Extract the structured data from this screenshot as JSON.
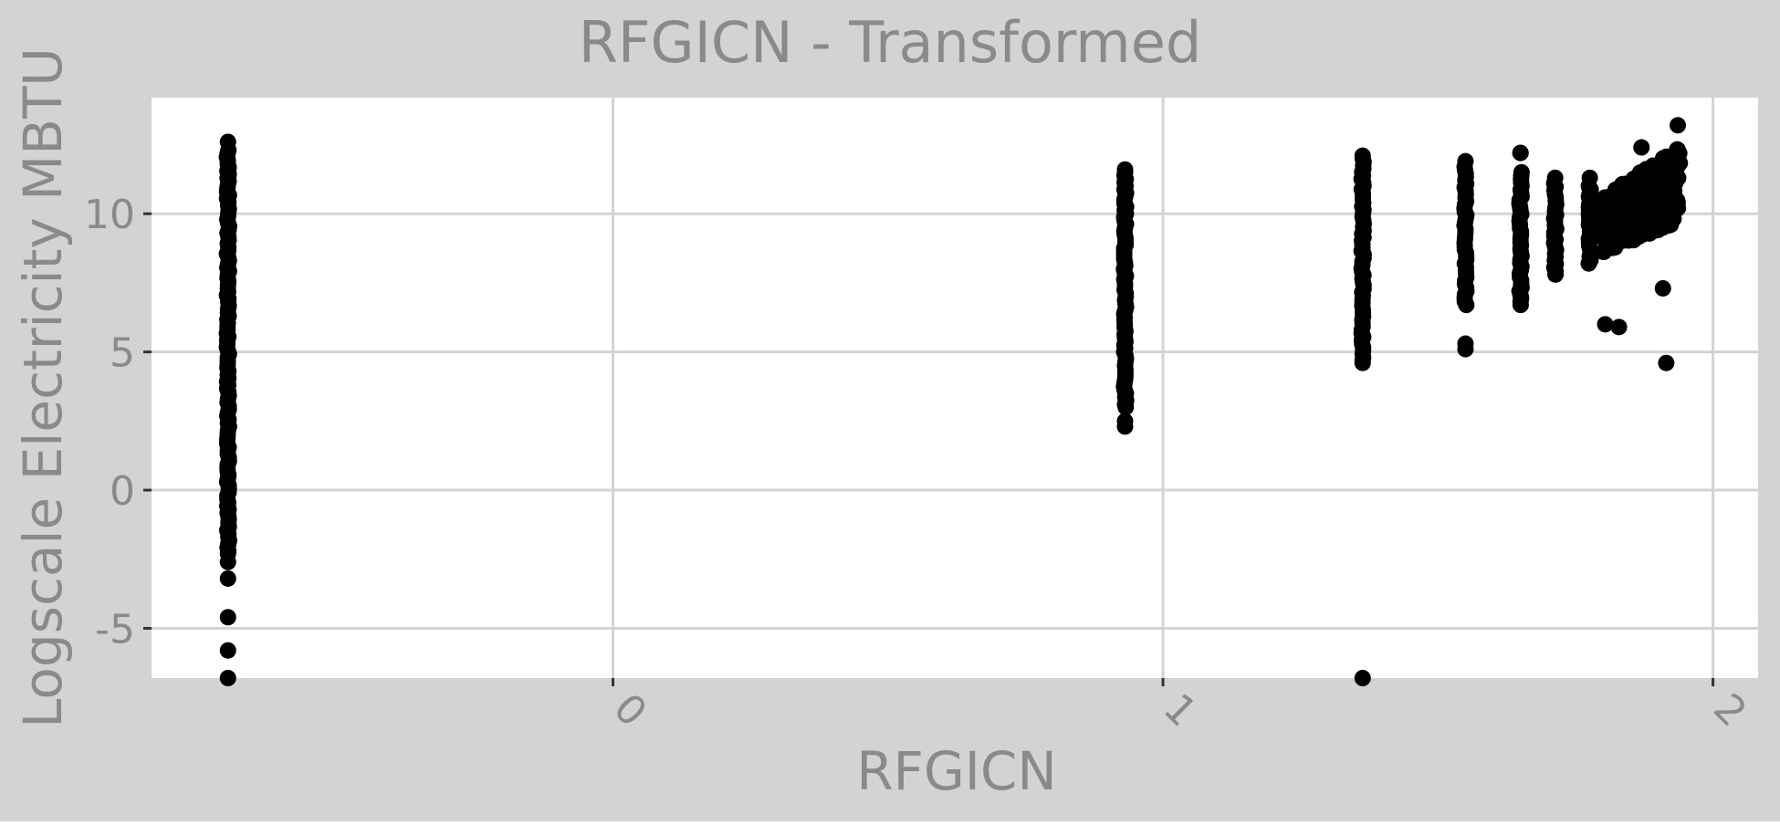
{
  "chart_data": {
    "type": "scatter",
    "title": "RFGICN - Transformed",
    "xlabel": "RFGICN",
    "ylabel": "Logscale Electricity MBTU",
    "xlim": [
      -0.839,
      2.082
    ],
    "ylim": [
      -6.8,
      14.2
    ],
    "x_ticks": [
      0,
      1,
      2
    ],
    "x_tick_labels": [
      "0",
      "1",
      "2"
    ],
    "x_tick_label_rotation": "45 degrees",
    "y_ticks": [
      -5,
      0,
      5,
      10
    ],
    "y_tick_labels": [
      "-5",
      "0",
      "5",
      "10"
    ],
    "grid": true,
    "legend": "none",
    "colors": {
      "background": "#d3d3d3",
      "panel": "#ffffff",
      "grid": "#d3d3d3",
      "points": "#000000",
      "text": "#8a8a8a"
    },
    "series": [
      {
        "columns": [
          {
            "x": -0.7,
            "y_min": -6.8,
            "y_max": 12.6,
            "dense_min": -2.2,
            "dense_max": 12.3,
            "extra_y": [
              -2.3,
              -2.6,
              -3.2,
              -4.6,
              -5.8,
              -6.8
            ]
          },
          {
            "x": 0.931,
            "y_min": 2.2,
            "y_max": 11.6,
            "dense_min": 3.0,
            "dense_max": 11.5,
            "extra_y": [
              2.3,
              2.5,
              3.1
            ]
          },
          {
            "x": 1.363,
            "y_min": -6.8,
            "y_max": 12.1,
            "dense_min": 4.8,
            "dense_max": 12.0,
            "extra_y": [
              4.6,
              4.7,
              -6.8
            ]
          },
          {
            "x": 1.55,
            "y_min": 5.1,
            "y_max": 11.9,
            "dense_min": 6.7,
            "dense_max": 11.7,
            "extra_y": [
              5.1,
              5.3
            ]
          },
          {
            "x": 1.65,
            "y_min": 6.5,
            "y_max": 12.2,
            "dense_min": 6.7,
            "dense_max": 11.5,
            "extra_y": [
              12.2
            ]
          },
          {
            "x": 1.713,
            "y_min": 7.6,
            "y_max": 11.3,
            "dense_min": 7.8,
            "dense_max": 11.1,
            "extra_y": []
          },
          {
            "x": 1.776,
            "y_min": 8.0,
            "y_max": 11.3,
            "dense_min": 8.2,
            "dense_max": 11.0,
            "extra_y": []
          }
        ],
        "cloud": {
          "x_range": [
            1.8,
            1.94
          ],
          "y_range": [
            8.0,
            13.2
          ]
        },
        "outliers": [
          {
            "x": 1.804,
            "y": 6.0
          },
          {
            "x": 1.829,
            "y": 5.9
          },
          {
            "x": 1.909,
            "y": 7.3
          },
          {
            "x": 1.915,
            "y": 4.6
          },
          {
            "x": 1.936,
            "y": 13.2
          },
          {
            "x": 1.87,
            "y": 12.4
          }
        ]
      }
    ]
  }
}
